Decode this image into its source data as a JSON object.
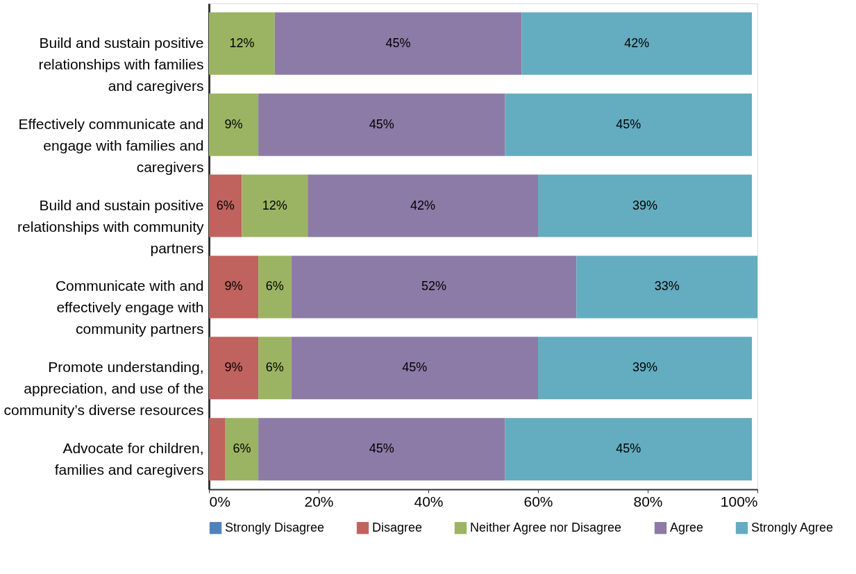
{
  "chart_data": {
    "type": "bar",
    "orientation": "horizontal",
    "stacked": true,
    "legend": "bottom",
    "categories": [
      "Build and sustain positive relationships with families and caregivers",
      "Effectively communicate and engage with families and caregivers",
      "Build and sustain positive relationships with community partners",
      "Communicate with and effectively engage with community partners",
      "Promote understanding, appreciation, and use of the community’s diverse resources",
      "Advocate for children, families and caregivers"
    ],
    "series": [
      {
        "name": "Strongly Disagree",
        "color": "#4f81bd",
        "values": [
          null,
          null,
          null,
          null,
          null,
          null
        ]
      },
      {
        "name": "Disagree",
        "color": "#c0625e",
        "values": [
          null,
          null,
          6,
          9,
          9,
          3
        ],
        "value_labels": [
          null,
          null,
          "6%",
          "9%",
          "9%",
          null
        ]
      },
      {
        "name": "Neither Agree nor Disagree",
        "color": "#9bb463",
        "values": [
          12,
          9,
          12,
          6,
          6,
          6
        ],
        "value_labels": [
          "12%",
          "9%",
          "12%",
          "6%",
          "6%",
          "6%"
        ]
      },
      {
        "name": "Agree",
        "color": "#8c7ba6",
        "values": [
          45,
          45,
          42,
          52,
          45,
          45
        ],
        "value_labels": [
          "45%",
          "45%",
          "42%",
          "52%",
          "45%",
          "45%"
        ]
      },
      {
        "name": "Strongly Agree",
        "color": "#64acbf",
        "values": [
          42,
          45,
          39,
          33,
          39,
          45
        ],
        "value_labels": [
          "42%",
          "45%",
          "39%",
          "33%",
          "39%",
          "45%"
        ]
      }
    ],
    "xlim": [
      0,
      100
    ],
    "xticks": [
      {
        "value": 0,
        "label": "0%"
      },
      {
        "value": 20,
        "label": "20%"
      },
      {
        "value": 40,
        "label": "40%"
      },
      {
        "value": 60,
        "label": "60%"
      },
      {
        "value": 80,
        "label": "80%"
      },
      {
        "value": 100,
        "label": "100%"
      }
    ]
  }
}
